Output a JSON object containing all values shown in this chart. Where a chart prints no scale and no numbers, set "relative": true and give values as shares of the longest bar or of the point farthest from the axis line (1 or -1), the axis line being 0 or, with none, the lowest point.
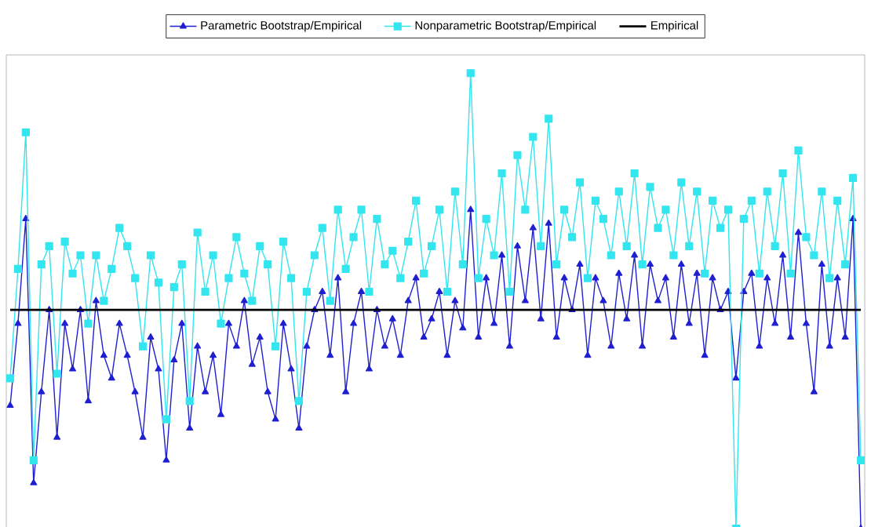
{
  "chart_data": {
    "type": "line",
    "relative": true,
    "legend": "top",
    "line_style": "solid",
    "categories": [
      null,
      null,
      null,
      null,
      null,
      null,
      null,
      null,
      null,
      null,
      null,
      null,
      null,
      null,
      null,
      null,
      null,
      null,
      null,
      null,
      null,
      null,
      null,
      null,
      null,
      null,
      null,
      null,
      null,
      null,
      null,
      null,
      null,
      null,
      null,
      null,
      null,
      null,
      null,
      null,
      null,
      null,
      null,
      null,
      null,
      null,
      null,
      null,
      null,
      null,
      null,
      null,
      null,
      null,
      null,
      null,
      null,
      null,
      null,
      null,
      null,
      null,
      null,
      null,
      null,
      null,
      null,
      null,
      null,
      null,
      null,
      null,
      null,
      null,
      null,
      null,
      null,
      null,
      null,
      null,
      null,
      null,
      null,
      null,
      null,
      null,
      null,
      null,
      null,
      null,
      null,
      null,
      null,
      null,
      null,
      null,
      null,
      null,
      null,
      null,
      null,
      null,
      null,
      null,
      null,
      null,
      null,
      null,
      null,
      null
    ],
    "series": [
      {
        "name": "Parametric Bootstrap/Empirical",
        "color": "#1f1fd0",
        "marker": "triangle",
        "values": [
          0.27,
          0.45,
          0.68,
          0.1,
          0.3,
          0.48,
          0.2,
          0.45,
          0.35,
          0.48,
          0.28,
          0.5,
          0.38,
          0.33,
          0.45,
          0.38,
          0.3,
          0.2,
          0.42,
          0.35,
          0.15,
          0.37,
          0.45,
          0.22,
          0.4,
          0.3,
          0.38,
          0.25,
          0.45,
          0.4,
          0.5,
          0.36,
          0.42,
          0.3,
          0.24,
          0.45,
          0.35,
          0.22,
          0.4,
          0.48,
          0.52,
          0.38,
          0.55,
          0.3,
          0.45,
          0.52,
          0.35,
          0.48,
          0.4,
          0.46,
          0.38,
          0.5,
          0.55,
          0.42,
          0.46,
          0.52,
          0.38,
          0.5,
          0.44,
          0.7,
          0.42,
          0.55,
          0.45,
          0.6,
          0.4,
          0.62,
          0.5,
          0.66,
          0.46,
          0.67,
          0.42,
          0.55,
          0.48,
          0.58,
          0.38,
          0.55,
          0.5,
          0.4,
          0.56,
          0.46,
          0.6,
          0.4,
          0.58,
          0.5,
          0.55,
          0.42,
          0.58,
          0.45,
          0.56,
          0.38,
          0.55,
          0.48,
          0.52,
          0.33,
          0.52,
          0.56,
          0.4,
          0.55,
          0.45,
          0.6,
          0.42,
          0.65,
          0.45,
          0.3,
          0.58,
          0.4,
          0.55,
          0.42,
          0.68,
          0.0
        ]
      },
      {
        "name": "Nonparametric Bootstrap/Empirical",
        "color": "#33e5ef",
        "marker": "square",
        "values": [
          0.33,
          0.57,
          0.87,
          0.15,
          0.58,
          0.62,
          0.34,
          0.63,
          0.56,
          0.6,
          0.45,
          0.6,
          0.5,
          0.57,
          0.66,
          0.62,
          0.55,
          0.4,
          0.6,
          0.54,
          0.24,
          0.53,
          0.58,
          0.28,
          0.65,
          0.52,
          0.6,
          0.45,
          0.55,
          0.64,
          0.56,
          0.5,
          0.62,
          0.58,
          0.4,
          0.63,
          0.55,
          0.28,
          0.52,
          0.6,
          0.66,
          0.5,
          0.7,
          0.57,
          0.64,
          0.7,
          0.52,
          0.68,
          0.58,
          0.61,
          0.55,
          0.63,
          0.72,
          0.56,
          0.62,
          0.7,
          0.52,
          0.74,
          0.58,
          1,
          0.55,
          0.68,
          0.6,
          0.78,
          0.52,
          0.82,
          0.7,
          0.86,
          0.62,
          0.9,
          0.58,
          0.7,
          0.64,
          0.76,
          0.55,
          0.72,
          0.68,
          0.6,
          0.74,
          0.62,
          0.78,
          0.58,
          0.75,
          0.66,
          0.7,
          0.6,
          0.76,
          0.62,
          0.74,
          0.56,
          0.72,
          0.66,
          0.7,
          0.0,
          0.68,
          0.72,
          0.56,
          0.74,
          0.62,
          0.78,
          0.56,
          0.83,
          0.64,
          0.6,
          0.74,
          0.55,
          0.72,
          0.58,
          0.77,
          0.15
        ]
      },
      {
        "name": "Empirical",
        "color": "#000000",
        "marker": "none",
        "values": [
          0.48,
          0.48,
          0.48,
          0.48,
          0.48,
          0.48,
          0.48,
          0.48,
          0.48,
          0.48,
          0.48,
          0.48,
          0.48,
          0.48,
          0.48,
          0.48,
          0.48,
          0.48,
          0.48,
          0.48,
          0.48,
          0.48,
          0.48,
          0.48,
          0.48,
          0.48,
          0.48,
          0.48,
          0.48,
          0.48,
          0.48,
          0.48,
          0.48,
          0.48,
          0.48,
          0.48,
          0.48,
          0.48,
          0.48,
          0.48,
          0.48,
          0.48,
          0.48,
          0.48,
          0.48,
          0.48,
          0.48,
          0.48,
          0.48,
          0.48,
          0.48,
          0.48,
          0.48,
          0.48,
          0.48,
          0.48,
          0.48,
          0.48,
          0.48,
          0.48,
          0.48,
          0.48,
          0.48,
          0.48,
          0.48,
          0.48,
          0.48,
          0.48,
          0.48,
          0.48,
          0.48,
          0.48,
          0.48,
          0.48,
          0.48,
          0.48,
          0.48,
          0.48,
          0.48,
          0.48,
          0.48,
          0.48,
          0.48,
          0.48,
          0.48,
          0.48,
          0.48,
          0.48,
          0.48,
          0.48,
          0.48,
          0.48,
          0.48,
          0.48,
          0.48,
          0.48,
          0.48,
          0.48,
          0.48,
          0.48,
          0.48,
          0.48,
          0.48,
          0.48,
          0.48,
          0.48,
          0.48,
          0.48,
          0.48,
          0.48
        ]
      }
    ]
  }
}
